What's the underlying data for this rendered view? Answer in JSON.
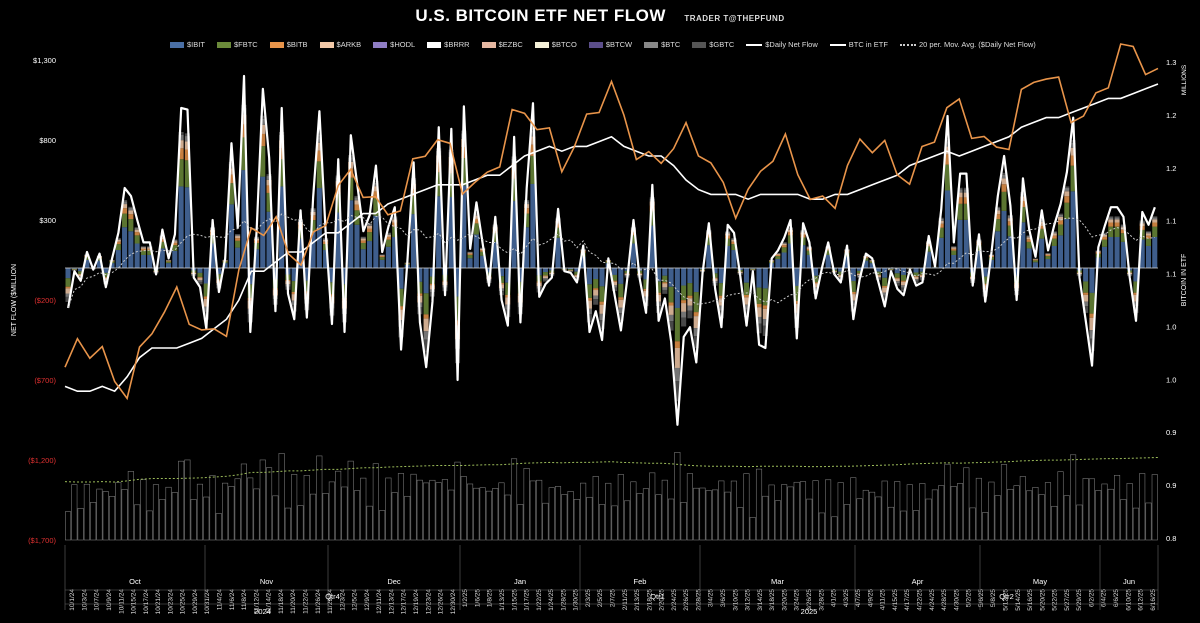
{
  "title": "U.S. BITCOIN ETF NET FLOW",
  "subtitle": "TRADER T@THEPFUND",
  "legend": [
    {
      "label": "$IBIT",
      "kind": "bar",
      "color": "#4a6fa5"
    },
    {
      "label": "$FBTC",
      "kind": "bar",
      "color": "#6b8a3a"
    },
    {
      "label": "$BITB",
      "kind": "bar",
      "color": "#e8944a"
    },
    {
      "label": "$ARKB",
      "kind": "bar",
      "color": "#f2c9a8"
    },
    {
      "label": "$HODL",
      "kind": "bar",
      "color": "#8e7cc3"
    },
    {
      "label": "$BRRR",
      "kind": "bar",
      "color": "#ffffff"
    },
    {
      "label": "$EZBC",
      "kind": "bar",
      "color": "#e6b8a2"
    },
    {
      "label": "$BTCO",
      "kind": "bar",
      "color": "#f5f0d8"
    },
    {
      "label": "$BTCW",
      "kind": "bar",
      "color": "#5b4e8a"
    },
    {
      "label": "$BTC",
      "kind": "bar",
      "color": "#888888"
    },
    {
      "label": "$GBTC",
      "kind": "bar",
      "color": "#555555"
    },
    {
      "label": "$Daily Net Flow",
      "kind": "line",
      "color": "#ffffff"
    },
    {
      "label": "BTC in ETF",
      "kind": "line",
      "color": "#ffffff"
    },
    {
      "label": "20 per. Mov. Avg. ($Daily Net Flow)",
      "kind": "dotted",
      "color": "#cccccc"
    }
  ],
  "chart_data": {
    "type": "bar",
    "title": "U.S. BITCOIN ETF NET FLOW",
    "ylabel_left": "NET FLOW ($MILLION",
    "ylabel_right": "BITCOIN IN ETF",
    "right_unit": "MILLIONS",
    "left_ticks": [
      "$1,300",
      "$800",
      "$300",
      "($200)",
      "($700)",
      "($1,200)",
      "($1,700)"
    ],
    "left_tick_values": [
      1300,
      800,
      300,
      -200,
      -700,
      -1200,
      -1700
    ],
    "left_neg_color": "#e03030",
    "ylim_left": [
      -1700,
      1300
    ],
    "right_ticks": [
      "1.3",
      "1.2",
      "1.2",
      "1.1",
      "1.1",
      "1.0",
      "1.0",
      "0.9",
      "0.9",
      "0.8"
    ],
    "ylim_right": [
      0.8,
      1.3
    ],
    "date_labels": [
      "10/1/24",
      "10/3/24",
      "10/7/24",
      "10/9/24",
      "10/11/24",
      "10/15/24",
      "10/17/24",
      "10/21/24",
      "10/23/24",
      "10/25/24",
      "10/29/24",
      "10/31/24",
      "11/4/24",
      "11/6/24",
      "11/8/24",
      "11/12/24",
      "11/14/24",
      "11/18/24",
      "11/20/24",
      "11/22/24",
      "11/26/24",
      "11/29/24",
      "12/3/24",
      "12/5/24",
      "12/9/24",
      "12/11/24",
      "12/13/24",
      "12/17/24",
      "12/19/24",
      "12/23/24",
      "12/26/24",
      "12/30/24",
      "1/2/25",
      "1/6/25",
      "1/8/25",
      "1/13/25",
      "1/15/25",
      "1/17/25",
      "1/22/25",
      "1/24/25",
      "1/28/25",
      "1/30/25",
      "2/3/25",
      "2/5/25",
      "2/7/25",
      "2/11/25",
      "2/13/25",
      "2/18/25",
      "2/20/25",
      "2/24/25",
      "2/26/25",
      "2/28/25",
      "3/4/25",
      "3/6/25",
      "3/10/25",
      "3/12/25",
      "3/14/25",
      "3/18/25",
      "3/20/25",
      "3/24/25",
      "3/26/25",
      "3/28/25",
      "4/1/25",
      "4/3/25",
      "4/7/25",
      "4/9/25",
      "4/11/25",
      "4/15/25",
      "4/17/25",
      "4/22/25",
      "4/24/25",
      "4/28/25",
      "4/30/25",
      "5/2/25",
      "5/6/25",
      "5/8/25",
      "5/12/25",
      "5/14/25",
      "5/16/25",
      "5/20/25",
      "5/22/25",
      "5/27/25",
      "5/29/25",
      "6/2/25",
      "6/4/25",
      "6/6/25",
      "6/10/25",
      "6/12/25",
      "6/16/25"
    ],
    "months": [
      "Oct",
      "Nov",
      "Dec",
      "Jan",
      "Feb",
      "Mar",
      "Apr",
      "May",
      "Jun"
    ],
    "quarters": [
      "Qtr4",
      "Qtr1",
      "Qtr2"
    ],
    "years": [
      "2024",
      "2025"
    ],
    "daily_net_flow": [
      -250,
      -20,
      -80,
      100,
      -10,
      90,
      -120,
      60,
      220,
      500,
      450,
      300,
      160,
      160,
      -40,
      240,
      60,
      210,
      1000,
      990,
      -60,
      -120,
      -380,
      300,
      -150,
      60,
      780,
      250,
      1200,
      -400,
      230,
      1120,
      690,
      -270,
      1000,
      -160,
      -320,
      360,
      -310,
      440,
      980,
      220,
      -350,
      680,
      -400,
      830,
      530,
      230,
      330,
      640,
      100,
      260,
      380,
      -510,
      40,
      660,
      -340,
      -620,
      -210,
      880,
      -170,
      870,
      -700,
      1010,
      120,
      410,
      150,
      -110,
      320,
      -200,
      -360,
      820,
      -340,
      500,
      1030,
      -180,
      -100,
      -60,
      370,
      -20,
      -30,
      -90,
      140,
      -400,
      -270,
      -450,
      60,
      -170,
      -390,
      -70,
      300,
      -70,
      -280,
      520,
      -330,
      -190,
      -460,
      -980,
      -430,
      -370,
      -590,
      -30,
      280,
      -130,
      -370,
      270,
      220,
      -50,
      -360,
      -20,
      -480,
      -500,
      60,
      110,
      190,
      300,
      -440,
      280,
      160,
      -190,
      0,
      160,
      -40,
      -90,
      140,
      -320,
      -70,
      90,
      60,
      -90,
      -240,
      -20,
      -130,
      -170,
      -10,
      -110,
      -90,
      200,
      10,
      370,
      950,
      160,
      590,
      590,
      -110,
      210,
      -210,
      100,
      450,
      700,
      390,
      -200,
      560,
      240,
      70,
      360,
      110,
      270,
      400,
      600,
      940,
      -60,
      -330,
      -610,
      130,
      260,
      380,
      380,
      320,
      -60,
      -330,
      350,
      270,
      380
    ],
    "btc_in_etf": [
      0.96,
      0.955,
      0.955,
      0.96,
      0.955,
      0.97,
      0.99,
      1.0,
      1.0,
      1.0,
      1.005,
      1.01,
      1.02,
      1.03,
      1.05,
      1.08,
      1.08,
      1.09,
      1.1,
      1.1,
      1.11,
      1.12,
      1.12,
      1.13,
      1.14,
      1.14,
      1.15,
      1.155,
      1.16,
      1.165,
      1.17,
      1.17,
      1.17,
      1.175,
      1.18,
      1.18,
      1.19,
      1.2,
      1.205,
      1.21,
      1.205,
      1.21,
      1.21,
      1.215,
      1.22,
      1.21,
      1.205,
      1.2,
      1.2,
      1.19,
      1.175,
      1.165,
      1.16,
      1.16,
      1.16,
      1.155,
      1.16,
      1.16,
      1.16,
      1.16,
      1.155,
      1.155,
      1.16,
      1.16,
      1.165,
      1.17,
      1.175,
      1.18,
      1.19,
      1.195,
      1.2,
      1.205,
      1.2,
      1.205,
      1.21,
      1.215,
      1.22,
      1.23,
      1.235,
      1.24,
      1.24,
      1.245,
      1.25,
      1.255,
      1.26,
      1.26,
      1.265,
      1.27,
      1.275
    ]
  }
}
